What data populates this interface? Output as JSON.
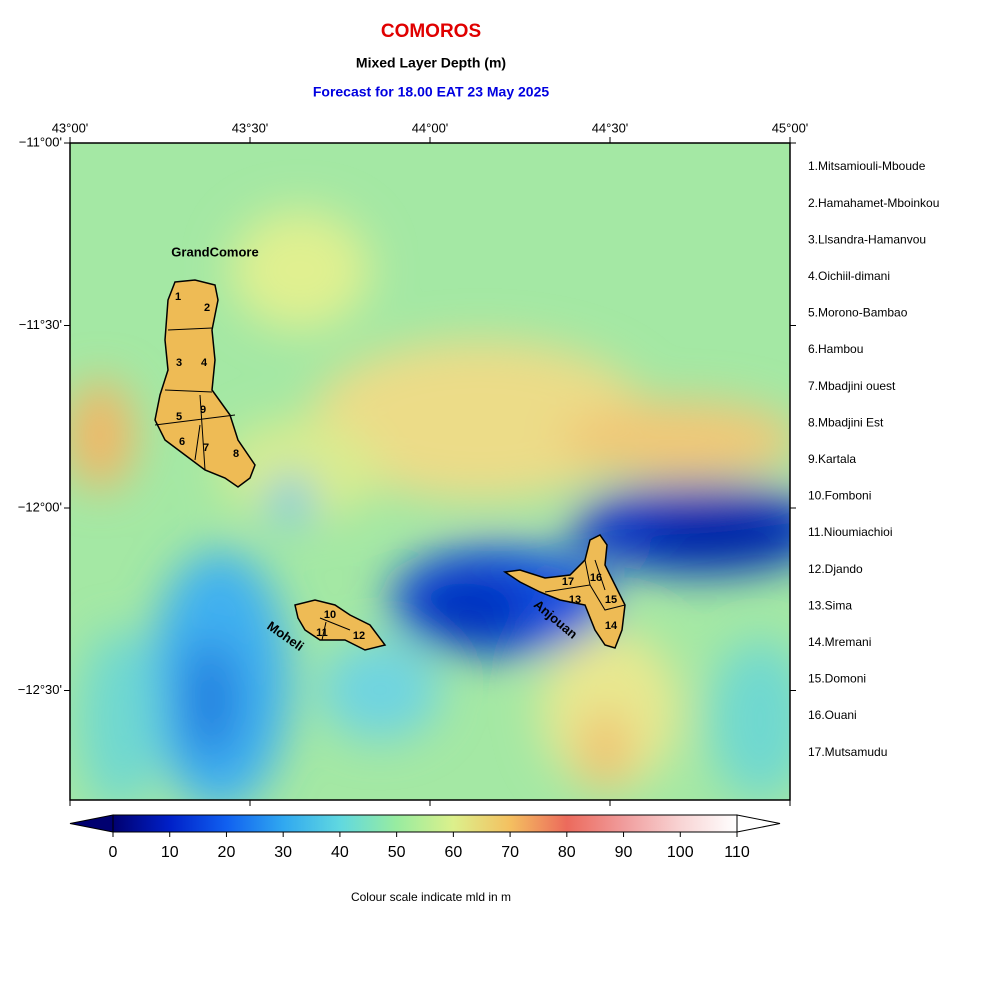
{
  "header": {
    "title": "COMOROS",
    "subtitle": "Mixed Layer Depth (m)",
    "forecast": "Forecast for  18.00 EAT 23 May 2025"
  },
  "map": {
    "lon_range": [
      43,
      45
    ],
    "lat_range": [
      -11,
      -12.8
    ],
    "lon_ticks": [
      {
        "value": 43,
        "label": "43°00'"
      },
      {
        "value": 43.5,
        "label": "43°30'"
      },
      {
        "value": 44,
        "label": "44°00'"
      },
      {
        "value": 44.5,
        "label": "44°30'"
      },
      {
        "value": 45,
        "label": "45°00'"
      }
    ],
    "lat_ticks": [
      {
        "value": -11,
        "label": "−11°00'"
      },
      {
        "value": -11.5,
        "label": "−11°30'"
      },
      {
        "value": -12,
        "label": "−12°00'"
      },
      {
        "value": -12.5,
        "label": "−12°30'"
      }
    ],
    "islands": [
      "GrandComore",
      "Moheli",
      "Anjouan"
    ],
    "region_numbers": [
      1,
      2,
      3,
      4,
      5,
      6,
      7,
      8,
      9,
      10,
      11,
      12,
      13,
      14,
      15,
      16,
      17
    ]
  },
  "legend": [
    "1.Mitsamiouli-Mboude",
    "2.Hamahamet-Mboinkou",
    "3.Llsandra-Hamanvou",
    "4.Oichiil-dimani",
    "5.Morono-Bambao",
    "6.Hambou",
    "7.Mbadjini ouest",
    "8.Mbadjini Est",
    "9.Kartala",
    "10.Fomboni",
    "11.Nioumiachioi",
    "12.Djando",
    "13.Sima",
    "14.Mremani",
    "15.Domoni",
    "16.Ouani",
    "17.Mutsamudu"
  ],
  "colorbar": {
    "range": [
      0,
      110
    ],
    "ticks": [
      0,
      10,
      20,
      30,
      40,
      50,
      60,
      70,
      80,
      90,
      100,
      110
    ],
    "colors": [
      "#000070",
      "#0020c8",
      "#1060f0",
      "#30a8f0",
      "#60d8e0",
      "#98eca0",
      "#dcf08c",
      "#f4c060",
      "#ec6a5c",
      "#f09c9c",
      "#f8d4d4",
      "#ffffff"
    ],
    "caption": "Colour scale indicate mld in m"
  }
}
